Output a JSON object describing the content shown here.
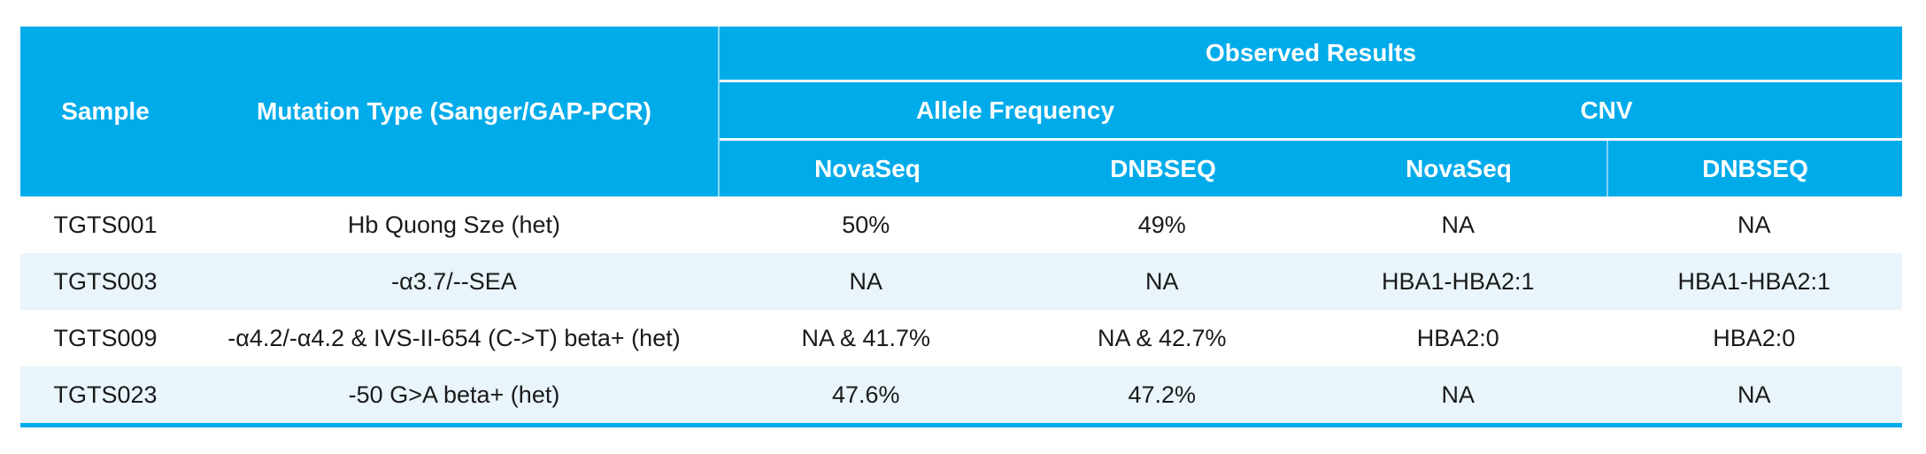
{
  "colors": {
    "header_bg": "#00ABEA",
    "header_text": "#FFFFFF",
    "row_alt_bg": "#E9F4FB",
    "body_text": "#1A1A1A",
    "bottom_border": "#00ABEA"
  },
  "table": {
    "header": {
      "sample": "Sample",
      "mutation_type": "Mutation Type (Sanger/GAP-PCR)",
      "observed_results": "Observed Results",
      "groups": [
        {
          "label": "Allele Frequency"
        },
        {
          "label": "CNV"
        }
      ],
      "subcolumns": [
        "NovaSeq",
        "DNBSEQ",
        "NovaSeq",
        "DNBSEQ"
      ]
    },
    "rows": [
      {
        "sample": "TGTS001",
        "mutation": "Hb Quong Sze (het)",
        "af_novaseq": "50%",
        "af_dnbseq": "49%",
        "cnv_novaseq": "NA",
        "cnv_dnbseq": "NA"
      },
      {
        "sample": "TGTS003",
        "mutation": "-α3.7/--SEA",
        "af_novaseq": "NA",
        "af_dnbseq": "NA",
        "cnv_novaseq": "HBA1-HBA2:1",
        "cnv_dnbseq": "HBA1-HBA2:1"
      },
      {
        "sample": "TGTS009",
        "mutation": "-α4.2/-α4.2 & IVS-II-654 (C->T) beta+ (het)",
        "af_novaseq": "NA & 41.7%",
        "af_dnbseq": "NA & 42.7%",
        "cnv_novaseq": "HBA2:0",
        "cnv_dnbseq": "HBA2:0"
      },
      {
        "sample": "TGTS023",
        "mutation": "-50 G>A beta+ (het)",
        "af_novaseq": "47.6%",
        "af_dnbseq": "47.2%",
        "cnv_novaseq": "NA",
        "cnv_dnbseq": "NA"
      }
    ]
  }
}
